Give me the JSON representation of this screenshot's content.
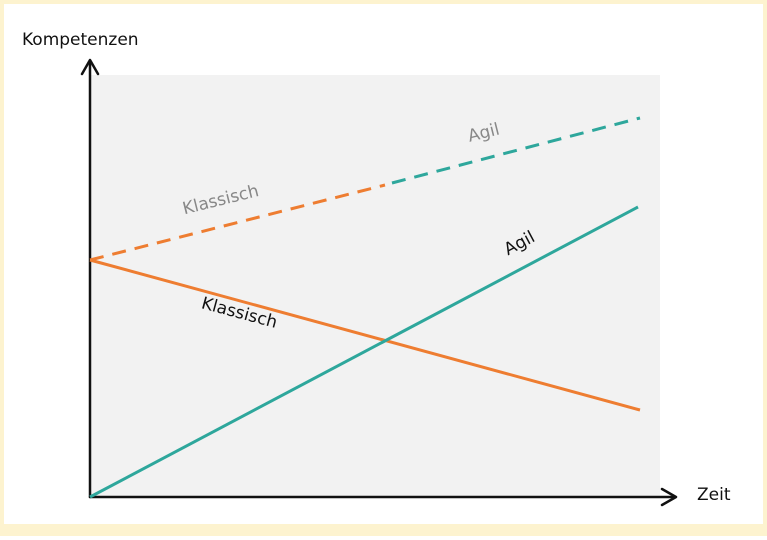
{
  "axes": {
    "y_label": "Kompetenzen",
    "x_label": "Zeit"
  },
  "labels": {
    "expected_classic": "Klassisch",
    "expected_agile": "Agil",
    "agile": "Agil",
    "classic": "Klassisch"
  }
}
